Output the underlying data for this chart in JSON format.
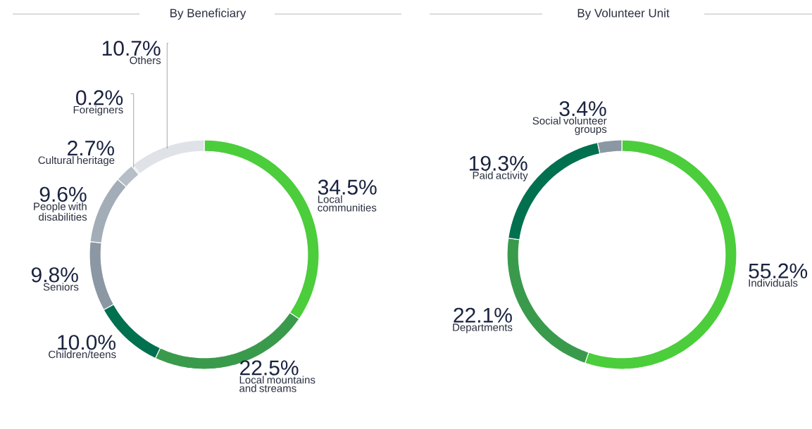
{
  "chart_data": [
    {
      "type": "donut",
      "title": "By Beneficiary",
      "categories": [
        "Local communities",
        "Local mountains and streams",
        "Children/teens",
        "Seniors",
        "People with disabilities",
        "Cultural heritage",
        "Foreigners",
        "Others"
      ],
      "values": [
        34.5,
        22.5,
        10.0,
        9.8,
        9.6,
        2.7,
        0.2,
        10.7
      ],
      "value_labels": [
        "34.5%",
        "22.5%",
        "10.0%",
        "9.8%",
        "9.6%",
        "2.7%",
        "0.2%",
        "10.7%"
      ],
      "colors": [
        "#4ccd3c",
        "#3a9a4c",
        "#00704f",
        "#8b97a3",
        "#a3adb7",
        "#b6bec7",
        "#c9cfd6",
        "#dfe3e8"
      ]
    },
    {
      "type": "donut",
      "title": "By Volunteer Unit",
      "categories": [
        "Individuals",
        "Departments",
        "Paid activity",
        "Social volunteer groups"
      ],
      "values": [
        55.2,
        22.1,
        19.3,
        3.4
      ],
      "value_labels": [
        "55.2%",
        "22.1%",
        "19.3%",
        "3.4%"
      ],
      "colors": [
        "#4ccd3c",
        "#3a9a4c",
        "#00704f",
        "#8b97a3"
      ]
    }
  ]
}
